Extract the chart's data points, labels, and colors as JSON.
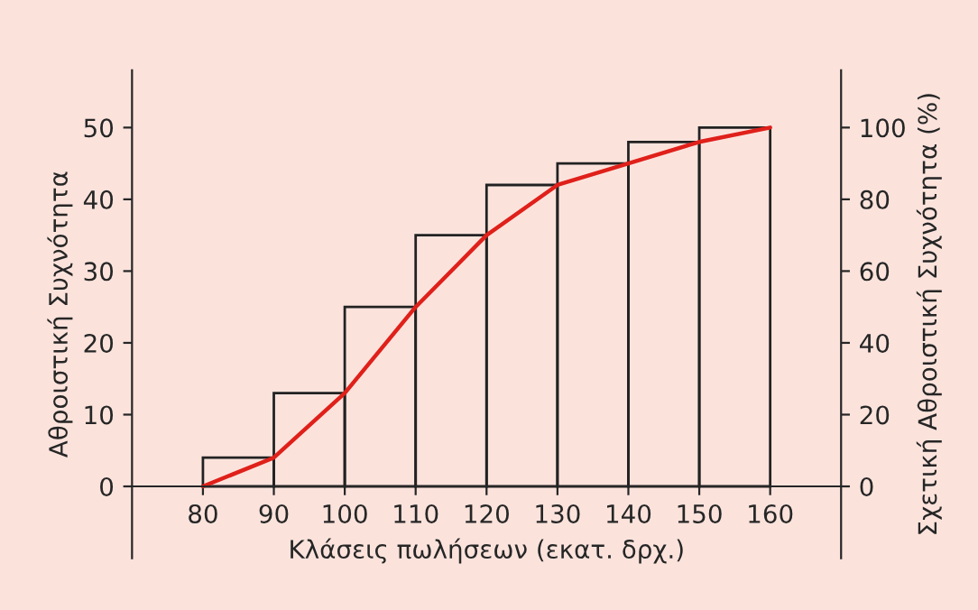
{
  "chart_data": {
    "type": "histogram",
    "bins": [
      80,
      90,
      100,
      110,
      120,
      130,
      140,
      150,
      160
    ],
    "values": [
      4,
      13,
      25,
      35,
      42,
      45,
      48,
      50
    ],
    "color": "#222222",
    "series": [
      {
        "type": "line",
        "x": [
          80,
          90,
          100,
          110,
          120,
          130,
          140,
          150,
          160
        ],
        "values": [
          0,
          4,
          13,
          25,
          35,
          42,
          45,
          48,
          50
        ],
        "color": "#e0201a"
      }
    ],
    "xlabel": "Κλάσεις πωλήσεων (εκατ. δρχ.)",
    "ylabel": "Αθροιστική Συχνότητα",
    "y2label": "Σχετική Αθροιστική Συχνότητα (%)",
    "xlim": [
      70,
      170
    ],
    "xticks": [
      80,
      90,
      100,
      110,
      120,
      130,
      140,
      150,
      160
    ],
    "ylim": [
      -10,
      58
    ],
    "yticks": [
      0,
      10,
      20,
      30,
      40,
      50
    ],
    "y2lim": [
      -20,
      116
    ],
    "y2ticks": [
      0,
      20,
      40,
      60,
      80,
      100
    ],
    "grid": false,
    "legend": false
  }
}
